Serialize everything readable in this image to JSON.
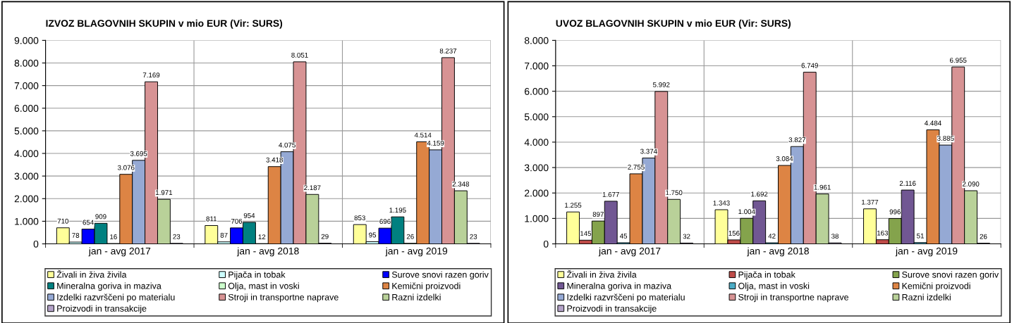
{
  "chart_data": [
    {
      "type": "bar",
      "title": "IZVOZ BLAGOVNIH SKUPIN v mio EUR (Vir: SURS)",
      "categories": [
        "jan - avg 2017",
        "jan - avg 2018",
        "jan - avg 2019"
      ],
      "ylim": [
        0,
        9000
      ],
      "yticks": [
        0,
        {
          "value": 1000,
          "label": "1.000"
        },
        {
          "value": 2000,
          "label": "2.000"
        },
        {
          "value": 3000,
          "label": "3.000"
        },
        {
          "value": 4000,
          "label": "4.000"
        },
        {
          "value": 5000,
          "label": "5.000"
        },
        {
          "value": 6000,
          "label": "6.000"
        },
        {
          "value": 7000,
          "label": "7.000"
        },
        {
          "value": 8000,
          "label": "8.000"
        },
        {
          "value": 9000,
          "label": "9.000"
        }
      ],
      "grid": true,
      "legend": "bottom",
      "series": [
        {
          "name": "Živali in živa živila",
          "color": "#ffff99",
          "values": [
            710,
            811,
            853
          ],
          "value_labels": [
            "710",
            "811",
            "853"
          ]
        },
        {
          "name": "Pijača in tobak",
          "color": "#ccffff",
          "values": [
            78,
            87,
            95
          ],
          "value_labels": [
            "78",
            "87",
            "95"
          ]
        },
        {
          "name": "Surove snovi razen goriv",
          "color": "#0000ff",
          "values": [
            654,
            706,
            696
          ],
          "value_labels": [
            "654",
            "706",
            "696"
          ]
        },
        {
          "name": "Mineralna goriva in maziva",
          "color": "#008080",
          "values": [
            909,
            954,
            1195
          ],
          "value_labels": [
            "909",
            "954",
            "1.195"
          ]
        },
        {
          "name": "Olja, mast in voski",
          "color": "#ccffcc",
          "values": [
            16,
            12,
            26
          ],
          "value_labels": [
            "16",
            "12",
            "26"
          ]
        },
        {
          "name": "Kemični proizvodi",
          "color": "#dd8444",
          "values": [
            3076,
            3418,
            4514
          ],
          "value_labels": [
            "3.076",
            "3.418",
            "4.514"
          ]
        },
        {
          "name": "Izdelki razvrščeni po materialu",
          "color": "#95a9d4",
          "values": [
            3695,
            4075,
            4159
          ],
          "value_labels": [
            "3.695",
            "4.075",
            "4.159"
          ]
        },
        {
          "name": "Stroji in transportne naprave",
          "color": "#d79394",
          "values": [
            7169,
            8051,
            8237
          ],
          "value_labels": [
            "7.169",
            "8.051",
            "8.237"
          ]
        },
        {
          "name": "Razni izdelki",
          "color": "#b9d199",
          "values": [
            1971,
            2187,
            2348
          ],
          "value_labels": [
            "1.971",
            "2.187",
            "2.348"
          ]
        },
        {
          "name": "Proizvodi in transakcije",
          "color": "#b3a2c7",
          "values": [
            23,
            29,
            23
          ],
          "value_labels": [
            "23",
            "29",
            "23"
          ]
        }
      ]
    },
    {
      "type": "bar",
      "title": "UVOZ BLAGOVNIH SKUPIN v mio EUR (Vir: SURS)",
      "categories": [
        "jan - avg 2017",
        "jan - avg 2018",
        "jan - avg 2019"
      ],
      "ylim": [
        0,
        8000
      ],
      "yticks": [
        0,
        {
          "value": 1000,
          "label": "1.000"
        },
        {
          "value": 2000,
          "label": "2.000"
        },
        {
          "value": 3000,
          "label": "3.000"
        },
        {
          "value": 4000,
          "label": "4.000"
        },
        {
          "value": 5000,
          "label": "5.000"
        },
        {
          "value": 6000,
          "label": "6.000"
        },
        {
          "value": 7000,
          "label": "7.000"
        },
        {
          "value": 8000,
          "label": "8.000"
        }
      ],
      "grid": true,
      "legend": "bottom",
      "series": [
        {
          "name": "Živali in živa živila",
          "color": "#ffff99",
          "values": [
            1255,
            1343,
            1377
          ],
          "value_labels": [
            "1.255",
            "1.343",
            "1.377"
          ]
        },
        {
          "name": "Pijača in tobak",
          "color": "#be4b48",
          "values": [
            145,
            156,
            163
          ],
          "value_labels": [
            "145",
            "156",
            "163"
          ]
        },
        {
          "name": "Surove snovi razen goriv",
          "color": "#84a34c",
          "values": [
            897,
            1004,
            996
          ],
          "value_labels": [
            "897",
            "1.004",
            "996"
          ]
        },
        {
          "name": "Mineralna goriva in maziva",
          "color": "#715793",
          "values": [
            1677,
            1692,
            2116
          ],
          "value_labels": [
            "1.677",
            "1.692",
            "2.116"
          ]
        },
        {
          "name": "Olja, mast in voski",
          "color": "#4bacc6",
          "values": [
            45,
            42,
            51
          ],
          "value_labels": [
            "45",
            "42",
            "51"
          ]
        },
        {
          "name": "Kemični proizvodi",
          "color": "#dd8444",
          "values": [
            2755,
            3084,
            4484
          ],
          "value_labels": [
            "2.755",
            "3.084",
            "4.484"
          ]
        },
        {
          "name": "Izdelki razvrščeni po materialu",
          "color": "#95a9d4",
          "values": [
            3374,
            3827,
            3885
          ],
          "value_labels": [
            "3.374",
            "3.827",
            "3.885"
          ]
        },
        {
          "name": "Stroji in transportne naprave",
          "color": "#d79394",
          "values": [
            5992,
            6749,
            6955
          ],
          "value_labels": [
            "5.992",
            "6.749",
            "6.955"
          ]
        },
        {
          "name": "Razni izdelki",
          "color": "#b9d199",
          "values": [
            1750,
            1961,
            2090
          ],
          "value_labels": [
            "1.750",
            "1.961",
            "2.090"
          ]
        },
        {
          "name": "Proizvodi in transakcije",
          "color": "#b3a2c7",
          "values": [
            32,
            38,
            26
          ],
          "value_labels": [
            "32",
            "38",
            "26"
          ]
        }
      ]
    }
  ]
}
